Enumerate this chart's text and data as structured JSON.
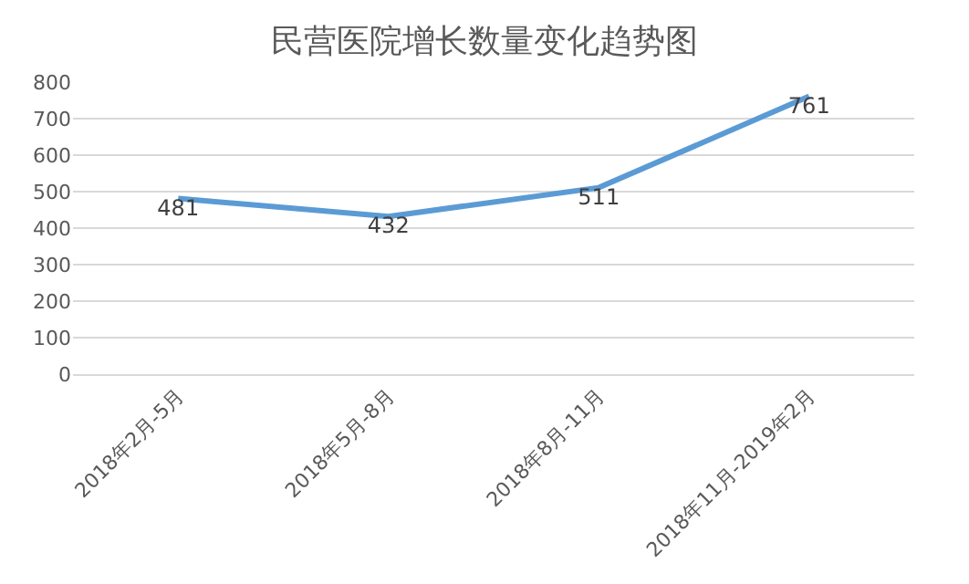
{
  "chart_data": {
    "type": "line",
    "title": "民营医院增长数量变化趋势图",
    "categories": [
      "2018年2月-5月",
      "2018年5月-8月",
      "2018年8月-11月",
      "2018年11月-2019年2月"
    ],
    "series": [
      {
        "color": "#5b9bd5",
        "values": [
          481,
          432,
          511,
          761
        ]
      }
    ],
    "ylim": [
      0,
      800
    ],
    "yticks": [
      0,
      100,
      200,
      300,
      400,
      500,
      600,
      700,
      800
    ],
    "grid": "y",
    "marker": "none",
    "line_style": "solid",
    "data_labels": true
  }
}
